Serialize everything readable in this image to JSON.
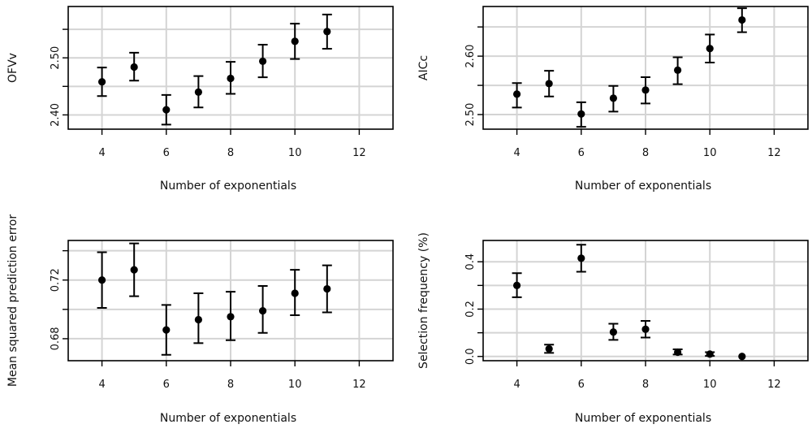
{
  "chart_data": [
    {
      "type": "scatter",
      "xlabel": "Number of exponentials",
      "ylabel": "OFVv",
      "xlim": [
        2.95,
        13.05
      ],
      "ylim": [
        2.375,
        2.59
      ],
      "xticks": [
        4,
        6,
        8,
        10,
        12
      ],
      "xtick_labels": [
        "4",
        "6",
        "8",
        "10",
        "12"
      ],
      "yticks": [
        2.4,
        2.45,
        2.5,
        2.55
      ],
      "ytick_labels": [
        "2.40",
        "",
        "2.50",
        ""
      ],
      "grid": true,
      "error_bars": true,
      "x": [
        4,
        5,
        6,
        7,
        8,
        9,
        10,
        11
      ],
      "y": [
        2.458,
        2.484,
        2.409,
        2.44,
        2.464,
        2.494,
        2.529,
        2.546
      ],
      "yerr_low": [
        2.433,
        2.46,
        2.383,
        2.413,
        2.437,
        2.466,
        2.498,
        2.516
      ],
      "yerr_high": [
        2.483,
        2.509,
        2.435,
        2.468,
        2.493,
        2.523,
        2.56,
        2.576
      ]
    },
    {
      "type": "scatter",
      "xlabel": "Number of exponentials",
      "ylabel": "AICc",
      "xlim": [
        2.95,
        13.05
      ],
      "ylim": [
        2.475,
        2.685
      ],
      "xticks": [
        4,
        6,
        8,
        10,
        12
      ],
      "xtick_labels": [
        "4",
        "6",
        "8",
        "10",
        "12"
      ],
      "yticks": [
        2.5,
        2.55,
        2.6,
        2.65
      ],
      "ytick_labels": [
        "2.50",
        "",
        "2.60",
        ""
      ],
      "grid": true,
      "error_bars": true,
      "x": [
        4,
        5,
        6,
        7,
        8,
        9,
        10,
        11
      ],
      "y": [
        2.535,
        2.553,
        2.501,
        2.528,
        2.542,
        2.576,
        2.613,
        2.662
      ],
      "yerr_low": [
        2.512,
        2.531,
        2.479,
        2.505,
        2.519,
        2.552,
        2.589,
        2.641
      ],
      "yerr_high": [
        2.554,
        2.575,
        2.521,
        2.549,
        2.564,
        2.598,
        2.637,
        2.682
      ]
    },
    {
      "type": "scatter",
      "xlabel": "Number of exponentials",
      "ylabel": "Mean squared prediction error",
      "xlim": [
        2.95,
        13.05
      ],
      "ylim": [
        0.665,
        0.747
      ],
      "xticks": [
        4,
        6,
        8,
        10,
        12
      ],
      "xtick_labels": [
        "4",
        "6",
        "8",
        "10",
        "12"
      ],
      "yticks": [
        0.68,
        0.7,
        0.72,
        0.74
      ],
      "ytick_labels": [
        "0.68",
        "",
        "0.72",
        ""
      ],
      "grid": true,
      "error_bars": true,
      "x": [
        4,
        5,
        6,
        7,
        8,
        9,
        10,
        11
      ],
      "y": [
        0.72,
        0.727,
        0.686,
        0.693,
        0.695,
        0.699,
        0.711,
        0.714
      ],
      "yerr_low": [
        0.701,
        0.709,
        0.669,
        0.677,
        0.679,
        0.684,
        0.696,
        0.698
      ],
      "yerr_high": [
        0.739,
        0.745,
        0.703,
        0.711,
        0.712,
        0.716,
        0.727,
        0.73
      ]
    },
    {
      "type": "scatter",
      "xlabel": "Number of exponentials",
      "ylabel": "Selection frequency (%)",
      "xlim": [
        2.95,
        13.05
      ],
      "ylim": [
        -0.018,
        0.49
      ],
      "xticks": [
        4,
        6,
        8,
        10,
        12
      ],
      "xtick_labels": [
        "4",
        "6",
        "8",
        "10",
        "12"
      ],
      "yticks": [
        0.0,
        0.1,
        0.2,
        0.3,
        0.4
      ],
      "ytick_labels": [
        "0.0",
        "",
        "0.2",
        "",
        "0.4"
      ],
      "grid": true,
      "error_bars": true,
      "x": [
        4,
        5,
        6,
        7,
        8,
        9,
        10,
        11
      ],
      "y": [
        0.3,
        0.032,
        0.415,
        0.103,
        0.115,
        0.018,
        0.01,
        0.0
      ],
      "yerr_low": [
        0.25,
        0.015,
        0.358,
        0.07,
        0.08,
        0.008,
        0.002,
        0.0
      ],
      "yerr_high": [
        0.352,
        0.05,
        0.472,
        0.138,
        0.15,
        0.03,
        0.018,
        0.0
      ]
    }
  ]
}
